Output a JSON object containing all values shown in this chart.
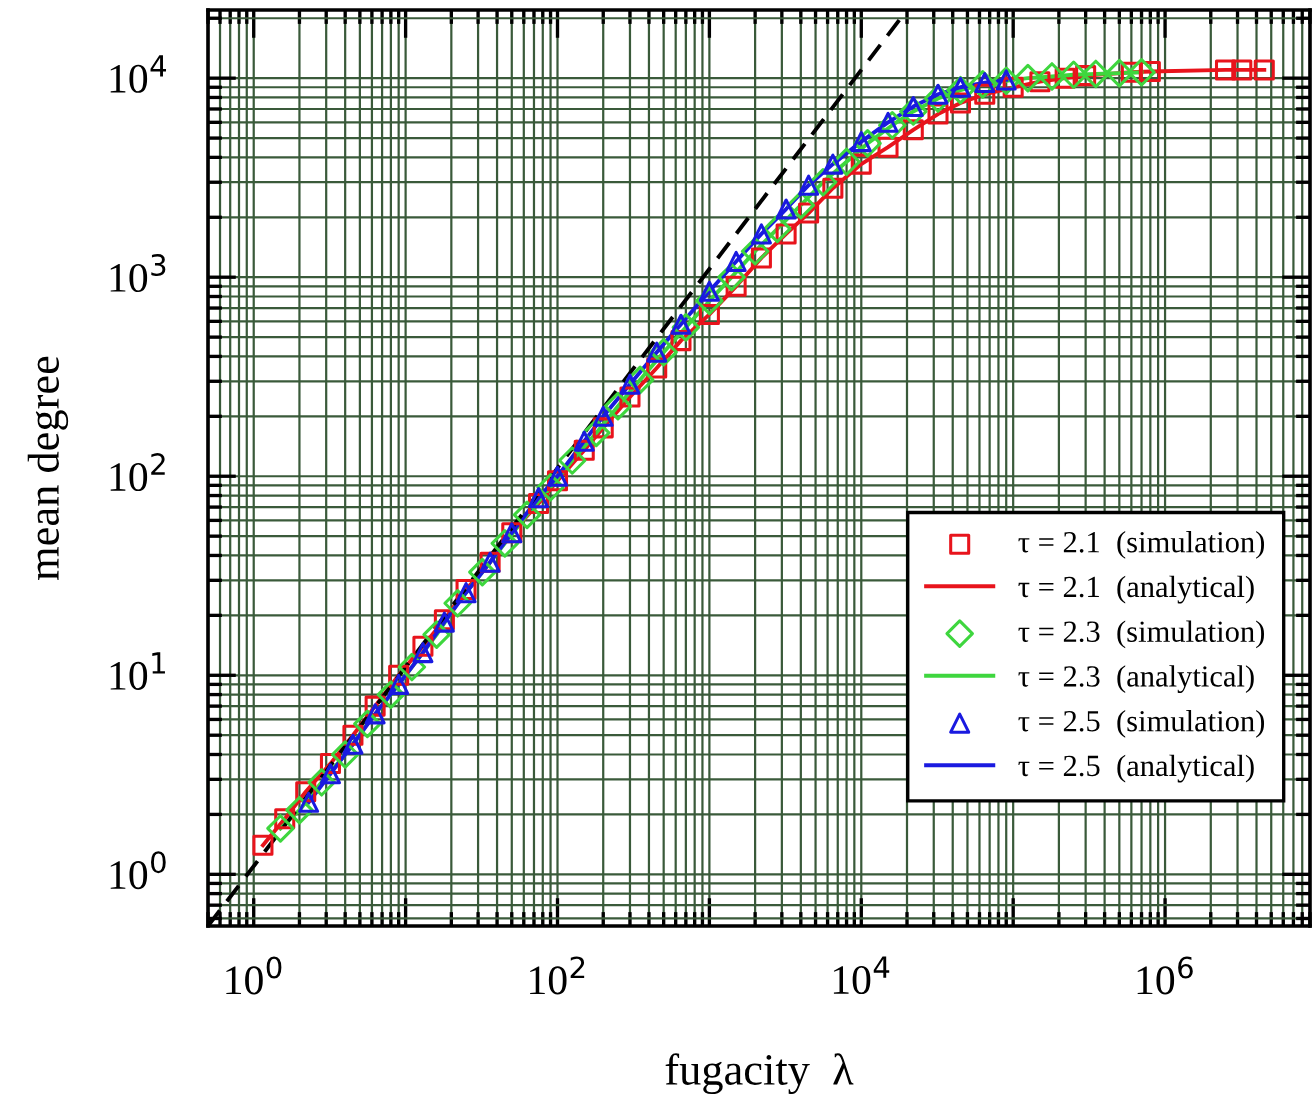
{
  "chart_data": {
    "type": "scatter",
    "xlabel": "fugacity  λ",
    "ylabel": "mean degree",
    "log": "xy",
    "grid": true,
    "legend": "bottom right",
    "xlim": [
      0.5,
      9000000
    ],
    "ylim": [
      0.55,
      22000
    ],
    "xticks": [
      {
        "value": 1,
        "label": "10$^{0}$"
      },
      {
        "value": 10,
        "label": null
      },
      {
        "value": 100,
        "label": "10$^{2}$"
      },
      {
        "value": 1000,
        "label": null
      },
      {
        "value": 10000,
        "label": "10$^{4}$"
      },
      {
        "value": 100000,
        "label": null
      },
      {
        "value": 1000000,
        "label": "10$^{6}$"
      }
    ],
    "yticks": [
      {
        "value": 1,
        "label": "10$^{0}$"
      },
      {
        "value": 10,
        "label": "10$^{1}$"
      },
      {
        "value": 100,
        "label": "10$^{2}$"
      },
      {
        "value": 1000,
        "label": "10$^{3}$"
      },
      {
        "value": 10000,
        "label": "10$^{4}$"
      }
    ],
    "series": [
      {
        "name": "τ = 2.1  (simulation)",
        "marker": "square",
        "color": "#e8141c",
        "x": [
          1.15,
          1.6,
          2.2,
          3.2,
          4.5,
          6.3,
          9,
          13,
          18,
          25,
          36,
          50,
          75,
          100,
          150,
          200,
          300,
          450,
          650,
          1000,
          1500,
          2200,
          3200,
          4500,
          6500,
          10000,
          15000,
          22000,
          32000,
          45000,
          65000,
          100000,
          150000,
          220000,
          300000,
          600000,
          800000,
          2500000,
          3200000,
          4500000
        ],
        "values": [
          1.4,
          1.9,
          2.6,
          3.6,
          5,
          7,
          10,
          14,
          19,
          27,
          37,
          52,
          73,
          95,
          135,
          175,
          250,
          350,
          480,
          650,
          900,
          1250,
          1650,
          2100,
          2800,
          3700,
          4500,
          5500,
          6600,
          7500,
          8300,
          9000,
          9600,
          10000,
          10300,
          10700,
          10800,
          11000,
          11000,
          11000
        ]
      },
      {
        "name": "τ = 2.1  (analytical)",
        "type": "line",
        "marker": "none",
        "line_style": "solid",
        "color": "#e8141c",
        "x": [
          1.15,
          1.6,
          2.2,
          3.2,
          4.5,
          6.3,
          9,
          13,
          18,
          25,
          36,
          50,
          75,
          100,
          150,
          200,
          300,
          450,
          650,
          1000,
          1500,
          2200,
          3200,
          4500,
          6500,
          10000,
          15000,
          22000,
          32000,
          45000,
          65000,
          100000,
          150000,
          220000,
          300000,
          600000,
          800000,
          2500000,
          3200000,
          4500000
        ],
        "values": [
          1.4,
          1.9,
          2.6,
          3.6,
          5,
          7,
          10,
          14,
          19,
          27,
          37,
          52,
          73,
          95,
          135,
          175,
          250,
          350,
          480,
          650,
          900,
          1250,
          1650,
          2100,
          2800,
          3700,
          4500,
          5500,
          6600,
          7500,
          8300,
          9000,
          9600,
          10000,
          10300,
          10700,
          10800,
          11000,
          11000,
          11000
        ]
      },
      {
        "name": "τ = 2.3  (simulation)",
        "marker": "diamond",
        "color": "#3ed63e",
        "x": [
          1.5,
          2,
          2.8,
          4,
          5.6,
          8,
          11,
          16,
          22,
          32,
          45,
          63,
          90,
          125,
          180,
          250,
          350,
          500,
          700,
          1000,
          1400,
          2000,
          2800,
          4000,
          5600,
          8000,
          11000,
          16000,
          22000,
          32000,
          45000,
          63000,
          90000,
          125000,
          180000,
          250000,
          350000,
          500000,
          700000
        ],
        "values": [
          1.7,
          2.1,
          2.9,
          4,
          5.7,
          8,
          11,
          16,
          23,
          33,
          46,
          64,
          88,
          120,
          165,
          225,
          305,
          420,
          560,
          760,
          1000,
          1350,
          1750,
          2300,
          3000,
          3800,
          4700,
          5800,
          6800,
          7900,
          8700,
          9300,
          9700,
          10000,
          10200,
          10400,
          10500,
          10600,
          10700
        ]
      },
      {
        "name": "τ = 2.3  (analytical)",
        "type": "line",
        "marker": "none",
        "line_style": "solid",
        "color": "#3ed63e",
        "x": [
          1.5,
          2,
          2.8,
          4,
          5.6,
          8,
          11,
          16,
          22,
          32,
          45,
          63,
          90,
          125,
          180,
          250,
          350,
          500,
          700,
          1000,
          1400,
          2000,
          2800,
          4000,
          5600,
          8000,
          11000,
          16000,
          22000,
          32000,
          45000,
          63000,
          90000,
          125000,
          180000,
          250000,
          350000,
          500000,
          700000
        ],
        "values": [
          1.7,
          2.1,
          2.9,
          4,
          5.7,
          8,
          11,
          16,
          23,
          33,
          46,
          64,
          88,
          120,
          165,
          225,
          305,
          420,
          560,
          760,
          1000,
          1350,
          1750,
          2300,
          3000,
          3800,
          4700,
          5800,
          6800,
          7900,
          8700,
          9300,
          9700,
          10000,
          10200,
          10400,
          10500,
          10600,
          10700
        ]
      },
      {
        "name": "τ = 2.5  (simulation)",
        "marker": "triangle",
        "color": "#1a1ae0",
        "x": [
          2.3,
          3.2,
          4.5,
          6.3,
          9,
          13,
          18,
          25,
          36,
          50,
          75,
          100,
          150,
          200,
          300,
          450,
          650,
          1000,
          1500,
          2200,
          3200,
          4500,
          6500,
          10000,
          15000,
          22000,
          32000,
          45000,
          65000,
          90000
        ],
        "values": [
          2.3,
          3.2,
          4.5,
          6.4,
          9,
          13,
          18.5,
          26,
          37,
          52,
          78,
          100,
          150,
          200,
          290,
          420,
          580,
          850,
          1200,
          1650,
          2200,
          2900,
          3700,
          4800,
          6000,
          7200,
          8300,
          9000,
          9500,
          9800
        ]
      },
      {
        "name": "τ = 2.5  (analytical)",
        "type": "line",
        "marker": "none",
        "line_style": "solid",
        "color": "#1a1ae0",
        "x": [
          2.3,
          3.2,
          4.5,
          6.3,
          9,
          13,
          18,
          25,
          36,
          50,
          75,
          100,
          150,
          200,
          300,
          450,
          650,
          1000,
          1500,
          2200,
          3200,
          4500,
          6500,
          10000,
          15000,
          22000,
          32000,
          45000,
          65000,
          90000
        ],
        "values": [
          2.3,
          3.2,
          4.5,
          6.4,
          9,
          13,
          18.5,
          26,
          37,
          52,
          78,
          100,
          150,
          200,
          290,
          420,
          580,
          850,
          1200,
          1650,
          2200,
          2900,
          3700,
          4800,
          6000,
          7200,
          8300,
          9000,
          9500,
          9800
        ]
      },
      {
        "type": "line",
        "marker": "none",
        "line_style": "dashed",
        "color": "#000000",
        "x": [
          0.5,
          20000
        ],
        "values": [
          0.55,
          22000
        ]
      }
    ]
  }
}
